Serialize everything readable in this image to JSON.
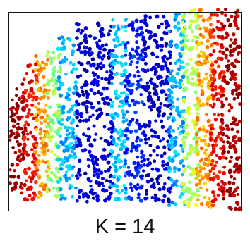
{
  "caption": "K = 14",
  "chart_data": {
    "type": "scatter",
    "title": "",
    "xlabel": "",
    "ylabel": "",
    "grid": false,
    "legend": "none",
    "color_scale": "jet",
    "colors": {
      "frame": "#111111",
      "low": "#00008f",
      "high": "#800000"
    },
    "bands": [
      {
        "x_range": [
          0.0,
          0.07
        ],
        "y_range": [
          0.08,
          0.62
        ],
        "color_value": 0.97
      },
      {
        "x_range": [
          0.06,
          0.12
        ],
        "y_range": [
          0.05,
          0.72
        ],
        "color_value": 0.88
      },
      {
        "x_range": [
          0.11,
          0.17
        ],
        "y_range": [
          0.06,
          0.76
        ],
        "color_value": 0.72
      },
      {
        "x_range": [
          0.16,
          0.22
        ],
        "y_range": [
          0.05,
          0.8
        ],
        "color_value": 0.52
      },
      {
        "x_range": [
          0.21,
          0.29
        ],
        "y_range": [
          0.05,
          0.86
        ],
        "color_value": 0.3
      },
      {
        "x_range": [
          0.29,
          0.45
        ],
        "y_range": [
          0.04,
          0.92
        ],
        "color_value": 0.08
      },
      {
        "x_range": [
          0.44,
          0.51
        ],
        "y_range": [
          0.04,
          0.94
        ],
        "color_value": 0.32
      },
      {
        "x_range": [
          0.5,
          0.58
        ],
        "y_range": [
          0.04,
          0.94
        ],
        "color_value": 0.15
      },
      {
        "x_range": [
          0.58,
          0.7
        ],
        "y_range": [
          0.03,
          0.96
        ],
        "color_value": 0.07
      },
      {
        "x_range": [
          0.69,
          0.76
        ],
        "y_range": [
          0.02,
          0.98
        ],
        "color_value": 0.3
      },
      {
        "x_range": [
          0.75,
          0.82
        ],
        "y_range": [
          0.01,
          0.99
        ],
        "color_value": 0.55
      },
      {
        "x_range": [
          0.81,
          0.88
        ],
        "y_range": [
          0.01,
          0.99
        ],
        "color_value": 0.72
      },
      {
        "x_range": [
          0.87,
          0.93
        ],
        "y_range": [
          0.0,
          0.99
        ],
        "color_value": 0.87
      },
      {
        "x_range": [
          0.92,
          1.0
        ],
        "y_range": [
          0.0,
          0.99
        ],
        "color_value": 0.96
      }
    ]
  }
}
